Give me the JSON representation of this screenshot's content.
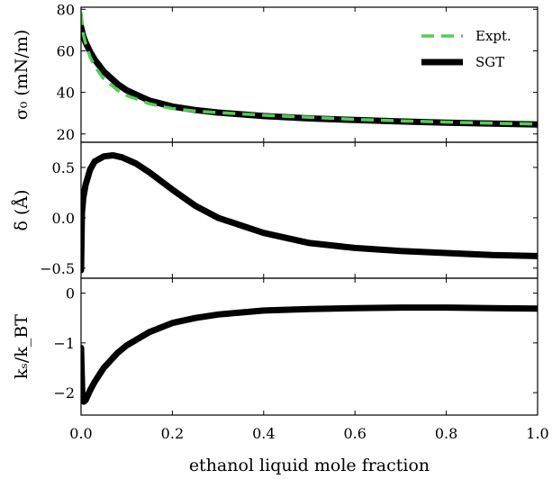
{
  "chart_data": [
    {
      "type": "line",
      "ylabel": "σ₀ (mN/m)",
      "ylim": [
        16,
        81
      ],
      "yticks": [
        20,
        40,
        60,
        80
      ],
      "xlim": [
        0,
        1
      ],
      "legend_position": "top-right",
      "series": [
        {
          "name": "Expt.",
          "color": "#55cc55",
          "style": "dashed",
          "x": [
            0.0,
            0.005,
            0.01,
            0.02,
            0.03,
            0.05,
            0.08,
            0.1,
            0.15,
            0.2,
            0.25,
            0.3,
            0.4,
            0.5,
            0.6,
            0.7,
            0.8,
            0.9,
            1.0
          ],
          "y": [
            78.5,
            68.0,
            63.5,
            57.0,
            52.5,
            46.5,
            41.0,
            38.5,
            34.5,
            32.2,
            31.0,
            30.3,
            29.0,
            28.0,
            27.0,
            26.3,
            25.7,
            25.2,
            24.8
          ]
        },
        {
          "name": "SGT",
          "color": "#000000",
          "style": "solid",
          "x": [
            0.0,
            0.005,
            0.01,
            0.02,
            0.03,
            0.05,
            0.08,
            0.1,
            0.15,
            0.2,
            0.25,
            0.3,
            0.4,
            0.5,
            0.6,
            0.7,
            0.8,
            0.9,
            1.0
          ],
          "y": [
            71.5,
            67.0,
            64.0,
            59.5,
            55.8,
            50.0,
            44.0,
            41.0,
            36.0,
            33.2,
            31.5,
            30.3,
            28.6,
            27.5,
            26.7,
            26.0,
            25.4,
            25.0,
            24.6
          ]
        }
      ]
    },
    {
      "type": "line",
      "ylabel": "δ (Å)",
      "ylim": [
        -0.6,
        0.75
      ],
      "yticks": [
        -0.5,
        0.0,
        0.5
      ],
      "ytick_labels": [
        "−0.5",
        "0.0",
        "0.5"
      ],
      "xlim": [
        0,
        1
      ],
      "series": [
        {
          "color": "#000000",
          "style": "solid",
          "x": [
            0.0,
            0.002,
            0.005,
            0.01,
            0.02,
            0.03,
            0.05,
            0.07,
            0.09,
            0.12,
            0.15,
            0.2,
            0.25,
            0.3,
            0.4,
            0.5,
            0.6,
            0.7,
            0.8,
            0.9,
            1.0
          ],
          "y": [
            -0.52,
            0.05,
            0.2,
            0.33,
            0.48,
            0.56,
            0.61,
            0.62,
            0.6,
            0.54,
            0.45,
            0.28,
            0.12,
            0.0,
            -0.15,
            -0.25,
            -0.3,
            -0.33,
            -0.35,
            -0.37,
            -0.38
          ]
        }
      ]
    },
    {
      "type": "line",
      "ylabel": "kₛ/k_BT",
      "ylim": [
        -2.45,
        0.3
      ],
      "yticks": [
        -2,
        -1,
        0
      ],
      "ytick_labels": [
        "−2",
        "−1",
        "0"
      ],
      "xlim": [
        0,
        1
      ],
      "xticks": [
        0.0,
        0.2,
        0.4,
        0.6,
        0.8,
        1.0
      ],
      "xtick_labels": [
        "0.0",
        "0.2",
        "0.4",
        "0.6",
        "0.8",
        "1.0"
      ],
      "xlabel": "ethanol liquid mole fraction",
      "series": [
        {
          "color": "#000000",
          "style": "solid",
          "x": [
            0.0,
            0.003,
            0.006,
            0.01,
            0.015,
            0.02,
            0.03,
            0.05,
            0.08,
            0.1,
            0.15,
            0.2,
            0.25,
            0.3,
            0.4,
            0.5,
            0.6,
            0.7,
            0.8,
            0.9,
            1.0
          ],
          "y": [
            -1.1,
            -2.1,
            -2.18,
            -2.15,
            -2.05,
            -1.95,
            -1.78,
            -1.5,
            -1.2,
            -1.05,
            -0.78,
            -0.6,
            -0.5,
            -0.43,
            -0.35,
            -0.32,
            -0.3,
            -0.29,
            -0.29,
            -0.3,
            -0.31
          ]
        }
      ]
    }
  ]
}
